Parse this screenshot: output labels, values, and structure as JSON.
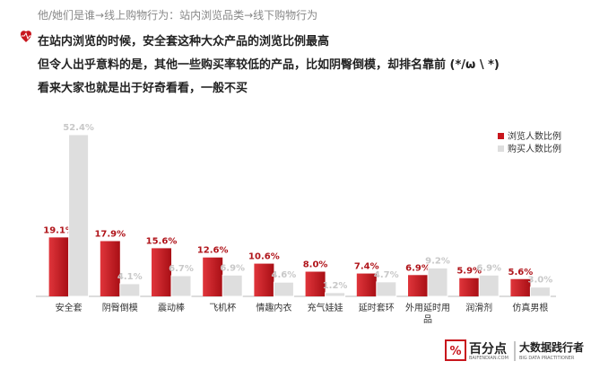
{
  "chart_data": {
    "type": "bar",
    "subtitle": "他/她们是谁→线上购物行为：站内浏览品类→线下购物行为",
    "annotations": [
      "在站内浏览的时候，安全套这种大众产品的浏览比例最高",
      "但令人出乎意料的是，其他一些购买率较低的产品，比如阴臀倒模，却排名靠前 (*/ω \\ *)",
      "看来大家也就是出于好奇看看，一般不买"
    ],
    "categories": [
      "安全套",
      "阴臀倒模",
      "震动棒",
      "飞机杯",
      "情趣内衣",
      "充气娃娃",
      "延时套环",
      "外用延时用品",
      "润滑剂",
      "仿真男根"
    ],
    "series": [
      {
        "name": "浏览人数比例",
        "color": "#c8161d",
        "values": [
          19.1,
          17.9,
          15.6,
          12.6,
          10.6,
          8.0,
          7.4,
          6.9,
          5.9,
          5.6
        ],
        "value_labels": [
          "19.1%",
          "17.9%",
          "15.6%",
          "12.6%",
          "10.6%",
          "8.0%",
          "7.4%",
          "6.9%",
          "5.9%",
          "5.6%"
        ]
      },
      {
        "name": "购买人数比例",
        "color": "#dedede",
        "values": [
          52.4,
          4.1,
          6.7,
          6.9,
          4.6,
          1.2,
          4.7,
          9.2,
          6.9,
          3.0
        ],
        "value_labels": [
          "52.4%",
          "4.1%",
          "6.7%",
          "6.9%",
          "4.6%",
          "1.2%",
          "4.7%",
          "9.2%",
          "6.9%",
          "3.0%"
        ]
      }
    ],
    "ylim": [
      0,
      55
    ],
    "legend": "upper right",
    "logo": {
      "name": "百分点",
      "site": "BAIFENDIAN.COM",
      "slogan": "大数据践行者",
      "slogan_en": "BIG DATA PRACTITIONER"
    }
  }
}
